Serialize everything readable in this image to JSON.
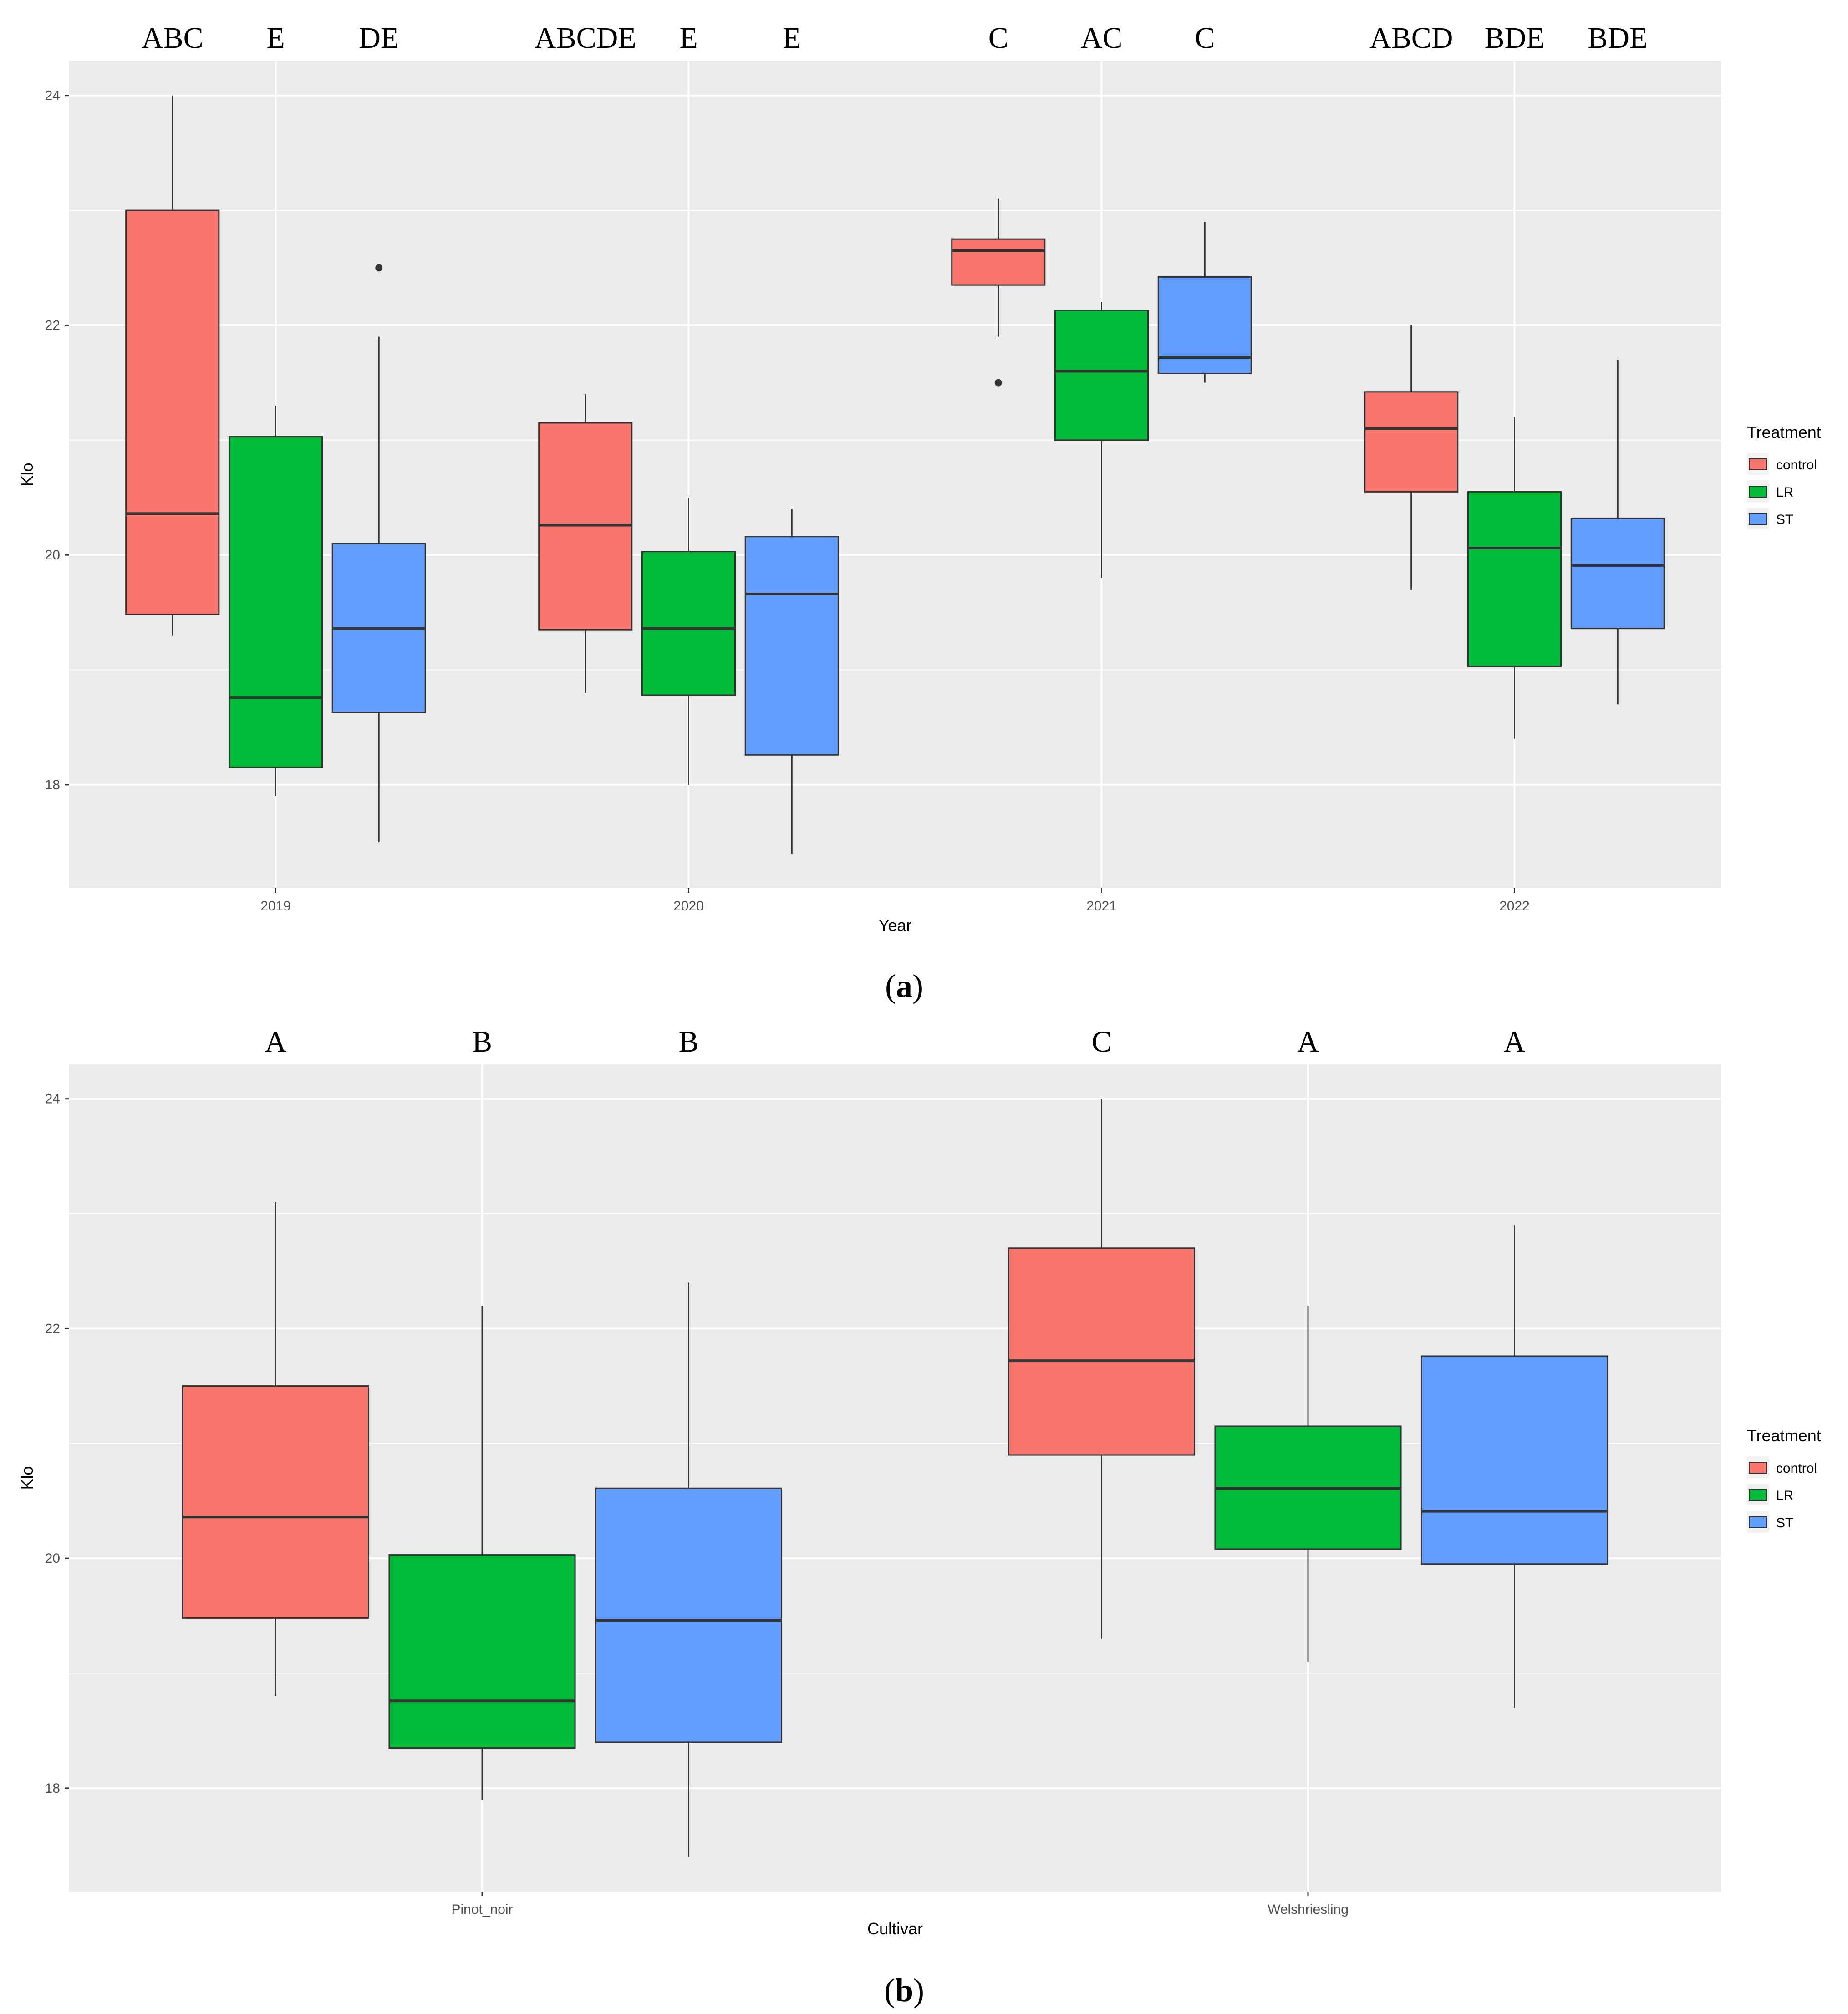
{
  "colors": {
    "panel_bg": "#EBEBEB",
    "grid": "#FFFFFF",
    "control": "#F8766D",
    "LR": "#00BA38",
    "ST": "#619CFF",
    "stroke": "#333333"
  },
  "chart_data": [
    {
      "type": "boxplot",
      "panel_label": "(a)",
      "panel_letter": "a",
      "xlabel": "Year",
      "ylabel": "Klo",
      "categories": [
        "2019",
        "2020",
        "2021",
        "2022"
      ],
      "ylim": [
        17.1,
        24.3
      ],
      "yticks": [
        18,
        20,
        22,
        24
      ],
      "legend": {
        "title": "Treatment",
        "position": "right",
        "entries": [
          "control",
          "LR",
          "ST"
        ]
      },
      "series": [
        {
          "name": "control",
          "boxes": [
            {
              "category": "2019",
              "lower_whisker": 19.3,
              "q1": 19.48,
              "median": 20.36,
              "q3": 23.0,
              "upper_whisker": 24.0,
              "outliers": []
            },
            {
              "category": "2020",
              "lower_whisker": 18.8,
              "q1": 19.35,
              "median": 20.26,
              "q3": 21.15,
              "upper_whisker": 21.4,
              "outliers": []
            },
            {
              "category": "2021",
              "lower_whisker": 21.9,
              "q1": 22.35,
              "median": 22.65,
              "q3": 22.75,
              "upper_whisker": 23.1,
              "outliers": [
                21.5
              ]
            },
            {
              "category": "2022",
              "lower_whisker": 19.7,
              "q1": 20.55,
              "median": 21.1,
              "q3": 21.42,
              "upper_whisker": 22.0,
              "outliers": []
            }
          ]
        },
        {
          "name": "LR",
          "boxes": [
            {
              "category": "2019",
              "lower_whisker": 17.9,
              "q1": 18.15,
              "median": 18.76,
              "q3": 21.03,
              "upper_whisker": 21.3,
              "outliers": []
            },
            {
              "category": "2020",
              "lower_whisker": 18.0,
              "q1": 18.78,
              "median": 19.36,
              "q3": 20.03,
              "upper_whisker": 20.5,
              "outliers": []
            },
            {
              "category": "2021",
              "lower_whisker": 19.8,
              "q1": 21.0,
              "median": 21.6,
              "q3": 22.13,
              "upper_whisker": 22.2,
              "outliers": []
            },
            {
              "category": "2022",
              "lower_whisker": 18.4,
              "q1": 19.03,
              "median": 20.06,
              "q3": 20.55,
              "upper_whisker": 21.2,
              "outliers": []
            }
          ]
        },
        {
          "name": "ST",
          "boxes": [
            {
              "category": "2019",
              "lower_whisker": 17.5,
              "q1": 18.63,
              "median": 19.36,
              "q3": 20.1,
              "upper_whisker": 21.9,
              "outliers": [
                22.5
              ]
            },
            {
              "category": "2020",
              "lower_whisker": 17.4,
              "q1": 18.26,
              "median": 19.66,
              "q3": 20.16,
              "upper_whisker": 20.4,
              "outliers": []
            },
            {
              "category": "2021",
              "lower_whisker": 21.5,
              "q1": 21.58,
              "median": 21.72,
              "q3": 22.42,
              "upper_whisker": 22.9,
              "outliers": []
            },
            {
              "category": "2022",
              "lower_whisker": 18.7,
              "q1": 19.36,
              "median": 19.91,
              "q3": 20.32,
              "upper_whisker": 21.7,
              "outliers": []
            }
          ]
        }
      ],
      "letters": [
        [
          "ABC",
          "E",
          "DE"
        ],
        [
          "ABCDE",
          "E",
          "E"
        ],
        [
          "C",
          "AC",
          "C"
        ],
        [
          "ABCD",
          "BDE",
          "BDE"
        ]
      ]
    },
    {
      "type": "boxplot",
      "panel_label": "(b)",
      "panel_letter": "b",
      "xlabel": "Cultivar",
      "ylabel": "Klo",
      "categories": [
        "Pinot_noir",
        "Welshriesling"
      ],
      "ylim": [
        17.1,
        24.3
      ],
      "yticks": [
        18,
        20,
        22,
        24
      ],
      "legend": {
        "title": "Treatment",
        "position": "right",
        "entries": [
          "control",
          "LR",
          "ST"
        ]
      },
      "series": [
        {
          "name": "control",
          "boxes": [
            {
              "category": "Pinot_noir",
              "lower_whisker": 18.8,
              "q1": 19.48,
              "median": 20.36,
              "q3": 21.5,
              "upper_whisker": 23.1,
              "outliers": []
            },
            {
              "category": "Welshriesling",
              "lower_whisker": 19.3,
              "q1": 20.9,
              "median": 21.72,
              "q3": 22.7,
              "upper_whisker": 24.0,
              "outliers": []
            }
          ]
        },
        {
          "name": "LR",
          "boxes": [
            {
              "category": "Pinot_noir",
              "lower_whisker": 17.9,
              "q1": 18.35,
              "median": 18.76,
              "q3": 20.03,
              "upper_whisker": 22.2,
              "outliers": []
            },
            {
              "category": "Welshriesling",
              "lower_whisker": 19.1,
              "q1": 20.08,
              "median": 20.61,
              "q3": 21.15,
              "upper_whisker": 22.2,
              "outliers": []
            }
          ]
        },
        {
          "name": "ST",
          "boxes": [
            {
              "category": "Pinot_noir",
              "lower_whisker": 17.4,
              "q1": 18.4,
              "median": 19.46,
              "q3": 20.61,
              "upper_whisker": 22.4,
              "outliers": []
            },
            {
              "category": "Welshriesling",
              "lower_whisker": 18.7,
              "q1": 19.95,
              "median": 20.41,
              "q3": 21.76,
              "upper_whisker": 22.9,
              "outliers": []
            }
          ]
        }
      ],
      "letters": [
        [
          "A",
          "B",
          "B"
        ],
        [
          "C",
          "A",
          "A"
        ]
      ]
    }
  ]
}
